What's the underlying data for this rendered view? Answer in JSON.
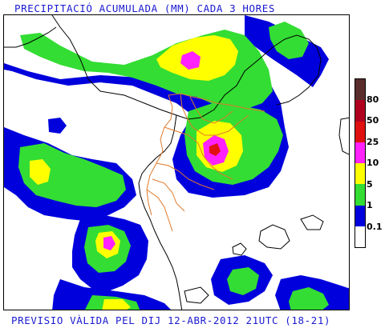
{
  "header": {
    "title": "PRECIPITACIÓ ACUMULADA (MM) CADA 3 HORES"
  },
  "footer": {
    "validity": "PREVISIO VÀLIDA PEL DIJ 12-ABR-2012 21UTC (18-21)"
  },
  "legend": {
    "labels": [
      "80",
      "50",
      "25",
      "10",
      "5",
      "1",
      "0.1"
    ],
    "colors": [
      "#5a2d2d",
      "#b00020",
      "#e01010",
      "#ff22ff",
      "#ffff00",
      "#33dd33",
      "#0000dd",
      "#ffffff"
    ]
  },
  "map": {
    "colors": {
      "coast": "#000000",
      "borders": "#e07a2a",
      "light": "#0000dd",
      "moderate": "#33dd33",
      "heavy": "#ffff00",
      "intense": "#ff22ff",
      "extreme": "#e01010"
    }
  }
}
